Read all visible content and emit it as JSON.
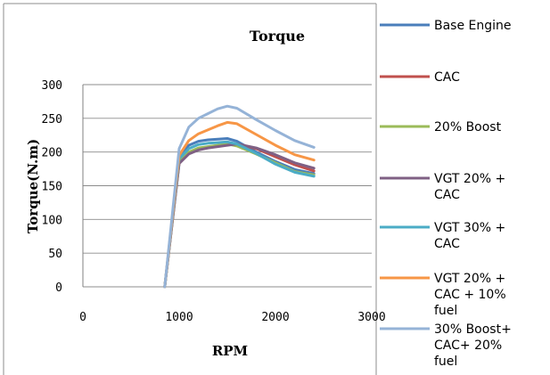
{
  "chart_data": {
    "type": "line",
    "title": "Torque",
    "xlabel": "RPM",
    "ylabel": "Torque(N.m)",
    "xlim": [
      0,
      3000
    ],
    "ylim": [
      0,
      300
    ],
    "xticks": [
      "0",
      "1000",
      "2000",
      "3000"
    ],
    "yticks": [
      "0",
      "50",
      "100",
      "150",
      "200",
      "250",
      "300"
    ],
    "grid": "horizontal",
    "legend_position": "right",
    "series": [
      {
        "name": "Base Engine",
        "color": "#4a7ebb",
        "points": [
          [
            850,
            0
          ],
          [
            1000,
            190
          ],
          [
            1100,
            210
          ],
          [
            1200,
            216
          ],
          [
            1300,
            218
          ],
          [
            1400,
            219
          ],
          [
            1500,
            220
          ],
          [
            1600,
            216
          ],
          [
            1800,
            200
          ],
          [
            2000,
            186
          ],
          [
            2200,
            174
          ],
          [
            2400,
            168
          ]
        ]
      },
      {
        "name": "CAC",
        "color": "#c0504d",
        "points": [
          [
            850,
            0
          ],
          [
            1000,
            184
          ],
          [
            1100,
            198
          ],
          [
            1200,
            204
          ],
          [
            1300,
            207
          ],
          [
            1400,
            209
          ],
          [
            1500,
            211
          ],
          [
            1600,
            212
          ],
          [
            1800,
            205
          ],
          [
            2000,
            193
          ],
          [
            2200,
            181
          ],
          [
            2400,
            172
          ]
        ]
      },
      {
        "name": "20% Boost",
        "color": "#9bbb59",
        "points": [
          [
            850,
            0
          ],
          [
            1000,
            186
          ],
          [
            1100,
            200
          ],
          [
            1200,
            206
          ],
          [
            1300,
            208
          ],
          [
            1400,
            210
          ],
          [
            1500,
            212
          ],
          [
            1600,
            209
          ],
          [
            1800,
            197
          ],
          [
            2000,
            184
          ],
          [
            2200,
            171
          ],
          [
            2400,
            166
          ]
        ]
      },
      {
        "name": "VGT 20% + CAC",
        "color": "#7f6084",
        "points": [
          [
            850,
            0
          ],
          [
            1000,
            183
          ],
          [
            1100,
            197
          ],
          [
            1200,
            203
          ],
          [
            1300,
            206
          ],
          [
            1400,
            208
          ],
          [
            1500,
            210
          ],
          [
            1600,
            212
          ],
          [
            1800,
            206
          ],
          [
            2000,
            196
          ],
          [
            2200,
            184
          ],
          [
            2400,
            176
          ]
        ]
      },
      {
        "name": "VGT 30% + CAC",
        "color": "#4bacc6",
        "points": [
          [
            850,
            0
          ],
          [
            1000,
            190
          ],
          [
            1100,
            205
          ],
          [
            1200,
            211
          ],
          [
            1300,
            213
          ],
          [
            1400,
            214
          ],
          [
            1500,
            215
          ],
          [
            1600,
            212
          ],
          [
            1800,
            198
          ],
          [
            2000,
            182
          ],
          [
            2200,
            170
          ],
          [
            2400,
            164
          ]
        ]
      },
      {
        "name": "VGT 20% + CAC + 10% fuel",
        "color": "#f79646",
        "points": [
          [
            850,
            0
          ],
          [
            1000,
            195
          ],
          [
            1100,
            217
          ],
          [
            1200,
            227
          ],
          [
            1300,
            233
          ],
          [
            1400,
            239
          ],
          [
            1500,
            244
          ],
          [
            1600,
            242
          ],
          [
            1800,
            226
          ],
          [
            2000,
            210
          ],
          [
            2200,
            196
          ],
          [
            2400,
            188
          ]
        ]
      },
      {
        "name": "30% Boost+ CAC+ 20% fuel",
        "color": "#95b3d7",
        "points": [
          [
            850,
            0
          ],
          [
            1000,
            205
          ],
          [
            1100,
            237
          ],
          [
            1200,
            250
          ],
          [
            1300,
            257
          ],
          [
            1400,
            264
          ],
          [
            1500,
            268
          ],
          [
            1600,
            265
          ],
          [
            1800,
            248
          ],
          [
            2000,
            232
          ],
          [
            2200,
            217
          ],
          [
            2400,
            207
          ]
        ]
      }
    ],
    "legend_lines": [
      [
        "Base Engine"
      ],
      [
        "CAC"
      ],
      [
        "20% Boost"
      ],
      [
        "VGT 20% +",
        "CAC"
      ],
      [
        "VGT 30% +",
        "CAC"
      ],
      [
        "VGT 20% +",
        "CAC + 10%",
        "fuel"
      ],
      [
        "30% Boost+",
        "CAC+ 20%",
        "fuel"
      ]
    ]
  }
}
